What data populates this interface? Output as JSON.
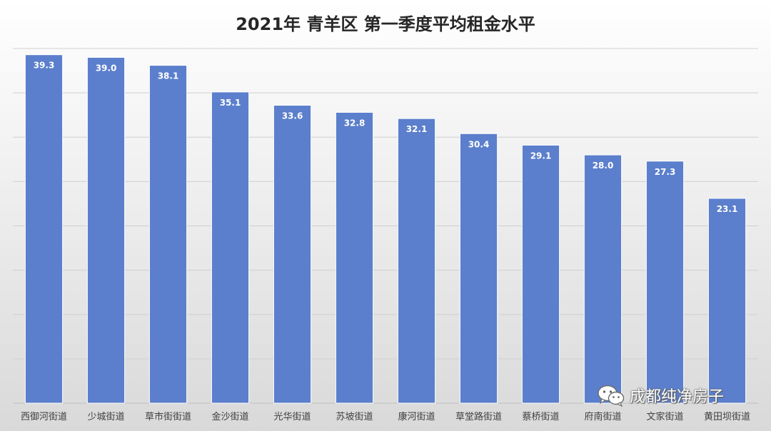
{
  "chart_data": {
    "type": "bar",
    "title": "2021年 青羊区 第一季度平均租金水平",
    "categories": [
      "西御河街道",
      "少城街道",
      "草市街街道",
      "金沙街道",
      "光华街道",
      "苏坡街道",
      "康河街道",
      "草堂路街道",
      "蔡桥街道",
      "府南街道",
      "文家街道",
      "黄田坝街道"
    ],
    "values": [
      39.3,
      39.0,
      38.1,
      35.1,
      33.6,
      32.8,
      32.1,
      30.4,
      29.1,
      28.0,
      27.3,
      23.1
    ],
    "ylim": [
      0,
      40
    ],
    "grid": true,
    "bar_color": "#5b7fcc",
    "label_color": "#ffffff"
  },
  "watermark": {
    "text": "成都纯净房子",
    "icon": "wechat-icon"
  }
}
